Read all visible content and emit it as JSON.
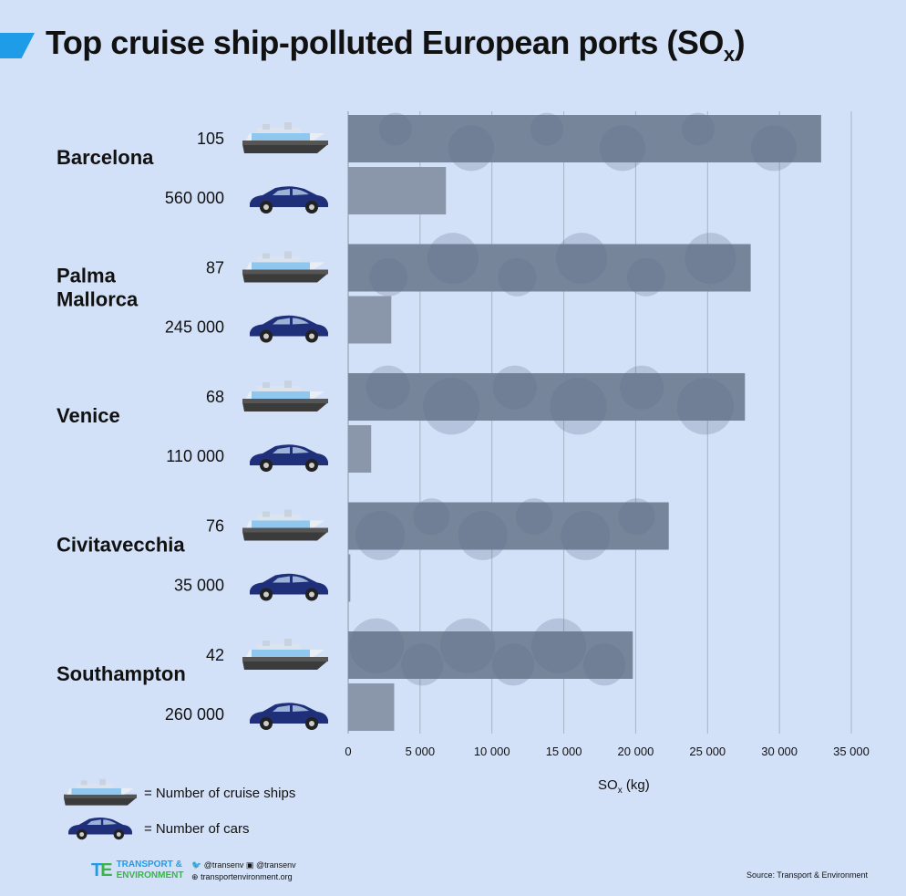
{
  "title": "Top cruise ship-polluted European ports (SO",
  "title_sub": "x",
  "title_close": ")",
  "chart_data": {
    "type": "bar",
    "orientation": "horizontal",
    "title": "Top cruise ship-polluted European ports (SOx)",
    "xlabel": "SO",
    "xlabel_sub": "x",
    "xlabel_unit": " (kg)",
    "xlim": [
      0,
      35000
    ],
    "xticks": [
      "0",
      "5 000",
      "10 000",
      "15 000",
      "20 000",
      "25 000",
      "30 000",
      "35 000"
    ],
    "grid": true,
    "categories": [
      "Barcelona",
      "Palma Mallorca",
      "Venice",
      "Civitavecchia",
      "Southampton"
    ],
    "series": [
      {
        "name": "Number of cruise ships",
        "counts": [
          "105",
          "87",
          "68",
          "76",
          "42"
        ],
        "values": [
          32900,
          28000,
          27600,
          22300,
          19800
        ],
        "color": "#77859b"
      },
      {
        "name": "Number of cars",
        "counts": [
          "560 000",
          "245 000",
          "110 000",
          "35 000",
          "260 000"
        ],
        "values": [
          6800,
          3000,
          1600,
          150,
          3200
        ],
        "color": "#8a96aa"
      }
    ]
  },
  "legend": {
    "ships_label": "= Number of cruise ships",
    "cars_label": "= Number of cars"
  },
  "footer": {
    "logo_line1": "TRANSPORT &",
    "logo_line2": "ENVIRONMENT",
    "twitter": "@transenv",
    "facebook": "@transenv",
    "website": "transportenvironment.org",
    "source": "Source: Transport & Environment"
  },
  "colors": {
    "background": "#d3e1f8",
    "accent": "#1f9ce8",
    "bar": "#77859b",
    "car": "#1f2f7a"
  }
}
